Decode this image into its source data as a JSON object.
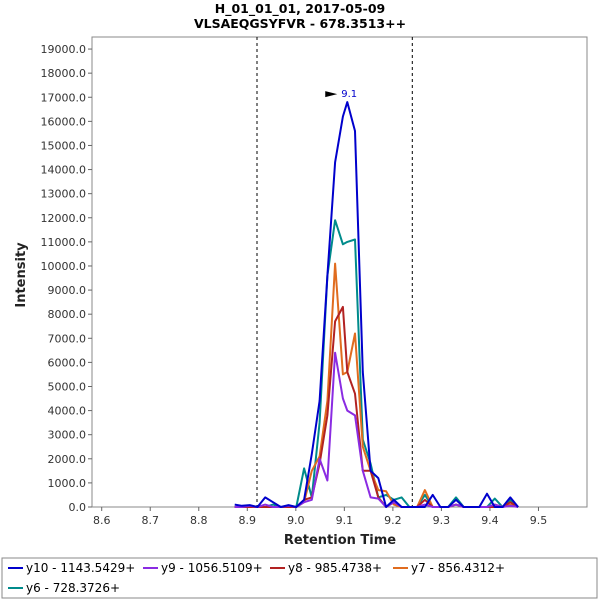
{
  "chart_data": {
    "type": "line",
    "title": "H_01_01_01, 2017-05-09",
    "subtitle": "VLSAEQGSYFVR - 678.3513++",
    "xlabel": "Retention Time",
    "ylabel": "Intensity",
    "xlim": [
      8.58,
      9.6
    ],
    "ylim": [
      0,
      19500
    ],
    "x_ticks": [
      "8.6",
      "8.7",
      "8.8",
      "8.9",
      "9.0",
      "9.1",
      "9.2",
      "9.3",
      "9.4",
      "9.5"
    ],
    "y_ticks": [
      "0.0",
      "1000.0",
      "2000.0",
      "3000.0",
      "4000.0",
      "5000.0",
      "6000.0",
      "7000.0",
      "8000.0",
      "9000.0",
      "10000.0",
      "11000.0",
      "12000.0",
      "13000.0",
      "14000.0",
      "15000.0",
      "16000.0",
      "17000.0",
      "18000.0",
      "19000.0"
    ],
    "integration_boundaries": [
      8.92,
      9.24
    ],
    "peak_annotation": {
      "label": "9.1",
      "x": 9.106,
      "y": 16800
    },
    "legend_position": "bottom",
    "grid": false,
    "series": [
      {
        "name": "y10 - 1143.5429+",
        "color": "#0000cc",
        "x": [
          8.874,
          8.889,
          8.905,
          8.921,
          8.937,
          8.953,
          8.969,
          8.985,
          9.001,
          9.017,
          9.033,
          9.049,
          9.065,
          9.081,
          9.097,
          9.106,
          9.122,
          9.138,
          9.154,
          9.17,
          9.186,
          9.202,
          9.218,
          9.234,
          9.25,
          9.266,
          9.282,
          9.298,
          9.314,
          9.33,
          9.346,
          9.362,
          9.378,
          9.394,
          9.41,
          9.426,
          9.442,
          9.458
        ],
        "y": [
          100,
          50,
          80,
          0,
          400,
          200,
          0,
          80,
          0,
          300,
          2200,
          4400,
          9600,
          14300,
          16200,
          16800,
          15600,
          5600,
          1500,
          1200,
          0,
          300,
          0,
          0,
          0,
          0,
          500,
          0,
          0,
          300,
          0,
          0,
          0,
          550,
          0,
          0,
          400,
          0
        ]
      },
      {
        "name": "y9 - 1056.5109+",
        "color": "#8a2be2",
        "x": [
          8.874,
          8.889,
          8.905,
          8.921,
          8.937,
          8.953,
          8.969,
          8.985,
          9.001,
          9.017,
          9.033,
          9.049,
          9.065,
          9.081,
          9.097,
          9.106,
          9.122,
          9.138,
          9.154,
          9.17,
          9.186,
          9.202,
          9.218,
          9.234,
          9.25,
          9.266,
          9.282,
          9.298,
          9.314,
          9.33,
          9.346,
          9.362,
          9.378,
          9.394,
          9.41,
          9.426,
          9.442,
          9.458
        ],
        "y": [
          0,
          0,
          50,
          0,
          100,
          0,
          0,
          50,
          0,
          200,
          300,
          2000,
          1100,
          6400,
          4500,
          4000,
          3800,
          1500,
          400,
          350,
          0,
          200,
          0,
          0,
          0,
          100,
          0,
          0,
          0,
          100,
          0,
          0,
          0,
          0,
          100,
          0,
          50,
          0
        ]
      },
      {
        "name": "y8 - 985.4738+",
        "color": "#b22222",
        "x": [
          8.874,
          8.889,
          8.905,
          8.921,
          8.937,
          8.953,
          8.969,
          8.985,
          9.001,
          9.017,
          9.033,
          9.049,
          9.065,
          9.081,
          9.097,
          9.106,
          9.122,
          9.138,
          9.154,
          9.17,
          9.186,
          9.202,
          9.218,
          9.234,
          9.25,
          9.266,
          9.282,
          9.298,
          9.314,
          9.33,
          9.346,
          9.362,
          9.378,
          9.394,
          9.41,
          9.426,
          9.442,
          9.458
        ],
        "y": [
          0,
          0,
          0,
          0,
          0,
          0,
          0,
          0,
          0,
          300,
          400,
          1800,
          3800,
          7700,
          8300,
          5600,
          4700,
          1500,
          1500,
          400,
          0,
          200,
          0,
          0,
          0,
          300,
          0,
          0,
          0,
          100,
          0,
          0,
          0,
          0,
          0,
          0,
          200,
          0
        ]
      },
      {
        "name": "y7 - 856.4312+",
        "color": "#e06c1f",
        "x": [
          8.874,
          8.889,
          8.905,
          8.921,
          8.937,
          8.953,
          8.969,
          8.985,
          9.001,
          9.017,
          9.033,
          9.049,
          9.065,
          9.081,
          9.097,
          9.106,
          9.122,
          9.138,
          9.154,
          9.17,
          9.186,
          9.202,
          9.218,
          9.234,
          9.25,
          9.266,
          9.282,
          9.298,
          9.314,
          9.33,
          9.346,
          9.362,
          9.378,
          9.394,
          9.41,
          9.426,
          9.442,
          9.458
        ],
        "y": [
          0,
          0,
          0,
          0,
          0,
          0,
          0,
          0,
          0,
          200,
          1500,
          2100,
          4400,
          10100,
          5500,
          5600,
          7200,
          2500,
          1500,
          700,
          650,
          100,
          0,
          0,
          0,
          700,
          0,
          0,
          0,
          100,
          0,
          0,
          0,
          0,
          100,
          0,
          100,
          0
        ]
      },
      {
        "name": "y6 - 728.3726+",
        "color": "#008b8b",
        "x": [
          8.874,
          8.889,
          8.905,
          8.921,
          8.937,
          8.953,
          8.969,
          8.985,
          9.001,
          9.017,
          9.033,
          9.049,
          9.065,
          9.081,
          9.097,
          9.106,
          9.122,
          9.138,
          9.154,
          9.17,
          9.186,
          9.202,
          9.218,
          9.234,
          9.25,
          9.266,
          9.282,
          9.298,
          9.314,
          9.33,
          9.346,
          9.362,
          9.378,
          9.394,
          9.41,
          9.426,
          9.442,
          9.458
        ],
        "y": [
          0,
          0,
          0,
          0,
          0,
          100,
          0,
          0,
          0,
          1600,
          400,
          3500,
          9600,
          11900,
          10900,
          11000,
          11100,
          2800,
          1800,
          400,
          500,
          300,
          400,
          0,
          0,
          500,
          0,
          0,
          0,
          400,
          0,
          0,
          0,
          0,
          350,
          0,
          300,
          0
        ]
      }
    ]
  }
}
